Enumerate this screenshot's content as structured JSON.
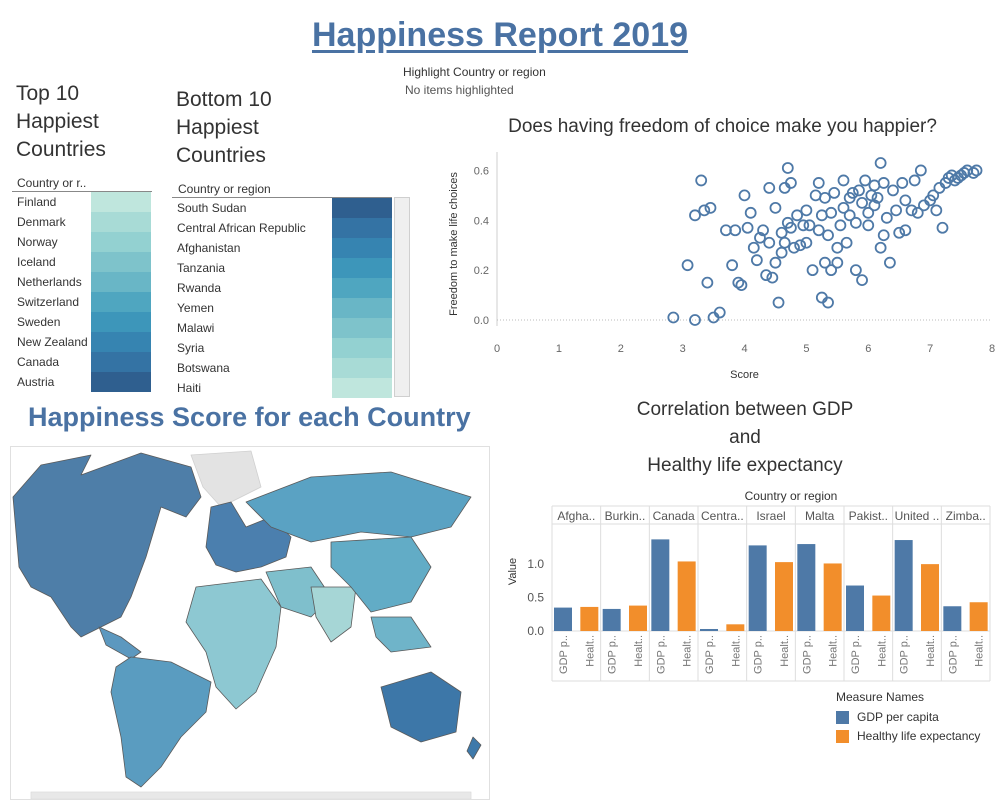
{
  "header": {
    "title": "Happiness Report 2019"
  },
  "highlight": {
    "label": "Highlight Country or region",
    "value": "No items highlighted"
  },
  "top10": {
    "title_lines": [
      "Top 10",
      "Happiest",
      "Countries"
    ],
    "column_header": "Country or r..",
    "countries": [
      "Finland",
      "Denmark",
      "Norway",
      "Iceland",
      "Netherlands",
      "Switzerland",
      "Sweden",
      "New Zealand",
      "Canada",
      "Austria"
    ],
    "colors": [
      "#bfe6dd",
      "#a8dbd6",
      "#93d1d1",
      "#7ec3cb",
      "#69b6c6",
      "#4fa6c0",
      "#3d96ba",
      "#3684b1",
      "#3473a4",
      "#2f5f8f"
    ]
  },
  "bottom10": {
    "title_lines": [
      "Bottom 10",
      "Happiest",
      "Countries"
    ],
    "column_header": "Country or region",
    "countries": [
      "South Sudan",
      "Central African Republic",
      "Afghanistan",
      "Tanzania",
      "Rwanda",
      "Yemen",
      "Malawi",
      "Syria",
      "Botswana",
      "Haiti"
    ],
    "colors": [
      "#2f5f8f",
      "#3473a4",
      "#3684b1",
      "#3d96ba",
      "#4fa6c0",
      "#69b6c6",
      "#7ec3cb",
      "#93d1d1",
      "#a8dbd6",
      "#bfe6dd"
    ]
  },
  "map": {
    "title": "Happiness Score for each Country"
  },
  "chart_data": [
    {
      "type": "scatter",
      "title": "Does having freedom of choice make you happier?",
      "xlabel": "Score",
      "ylabel": "Freedom to make life choices",
      "xlim": [
        0,
        8
      ],
      "ylim": [
        0,
        0.65
      ],
      "xticks": [
        "0",
        "1",
        "2",
        "3",
        "4",
        "5",
        "6",
        "7",
        "8"
      ],
      "yticks": [
        "0.0",
        "0.2",
        "0.4",
        "0.6"
      ],
      "color": "#4e79a7",
      "points": [
        [
          2.85,
          0.01
        ],
        [
          3.08,
          0.22
        ],
        [
          3.2,
          0.0
        ],
        [
          3.2,
          0.42
        ],
        [
          3.3,
          0.56
        ],
        [
          3.35,
          0.44
        ],
        [
          3.4,
          0.15
        ],
        [
          3.45,
          0.45
        ],
        [
          3.5,
          0.01
        ],
        [
          3.6,
          0.03
        ],
        [
          3.7,
          0.36
        ],
        [
          3.8,
          0.22
        ],
        [
          3.85,
          0.36
        ],
        [
          3.9,
          0.15
        ],
        [
          3.95,
          0.14
        ],
        [
          4.0,
          0.5
        ],
        [
          4.05,
          0.37
        ],
        [
          4.1,
          0.43
        ],
        [
          4.15,
          0.29
        ],
        [
          4.2,
          0.24
        ],
        [
          4.25,
          0.33
        ],
        [
          4.3,
          0.36
        ],
        [
          4.35,
          0.18
        ],
        [
          4.4,
          0.53
        ],
        [
          4.4,
          0.31
        ],
        [
          4.45,
          0.17
        ],
        [
          4.5,
          0.23
        ],
        [
          4.5,
          0.45
        ],
        [
          4.55,
          0.07
        ],
        [
          4.6,
          0.35
        ],
        [
          4.6,
          0.27
        ],
        [
          4.65,
          0.53
        ],
        [
          4.65,
          0.31
        ],
        [
          4.7,
          0.39
        ],
        [
          4.7,
          0.61
        ],
        [
          4.75,
          0.55
        ],
        [
          4.75,
          0.37
        ],
        [
          4.8,
          0.29
        ],
        [
          4.85,
          0.42
        ],
        [
          4.9,
          0.3
        ],
        [
          4.95,
          0.38
        ],
        [
          5.0,
          0.31
        ],
        [
          5.0,
          0.44
        ],
        [
          5.05,
          0.38
        ],
        [
          5.1,
          0.2
        ],
        [
          5.15,
          0.5
        ],
        [
          5.2,
          0.55
        ],
        [
          5.2,
          0.36
        ],
        [
          5.25,
          0.09
        ],
        [
          5.25,
          0.42
        ],
        [
          5.3,
          0.23
        ],
        [
          5.3,
          0.49
        ],
        [
          5.35,
          0.07
        ],
        [
          5.35,
          0.34
        ],
        [
          5.4,
          0.2
        ],
        [
          5.4,
          0.43
        ],
        [
          5.45,
          0.51
        ],
        [
          5.5,
          0.29
        ],
        [
          5.5,
          0.23
        ],
        [
          5.55,
          0.38
        ],
        [
          5.6,
          0.45
        ],
        [
          5.6,
          0.56
        ],
        [
          5.65,
          0.31
        ],
        [
          5.7,
          0.49
        ],
        [
          5.7,
          0.42
        ],
        [
          5.75,
          0.51
        ],
        [
          5.8,
          0.2
        ],
        [
          5.8,
          0.39
        ],
        [
          5.85,
          0.52
        ],
        [
          5.9,
          0.16
        ],
        [
          5.9,
          0.47
        ],
        [
          5.95,
          0.56
        ],
        [
          6.0,
          0.43
        ],
        [
          6.0,
          0.38
        ],
        [
          6.05,
          0.5
        ],
        [
          6.1,
          0.54
        ],
        [
          6.1,
          0.46
        ],
        [
          6.15,
          0.49
        ],
        [
          6.2,
          0.63
        ],
        [
          6.2,
          0.29
        ],
        [
          6.25,
          0.34
        ],
        [
          6.25,
          0.55
        ],
        [
          6.3,
          0.41
        ],
        [
          6.35,
          0.23
        ],
        [
          6.4,
          0.52
        ],
        [
          6.45,
          0.44
        ],
        [
          6.5,
          0.35
        ],
        [
          6.55,
          0.55
        ],
        [
          6.6,
          0.48
        ],
        [
          6.6,
          0.36
        ],
        [
          6.7,
          0.44
        ],
        [
          6.8,
          0.43
        ],
        [
          6.9,
          0.46
        ],
        [
          7.0,
          0.48
        ],
        [
          7.05,
          0.5
        ],
        [
          7.1,
          0.44
        ],
        [
          7.15,
          0.53
        ],
        [
          7.2,
          0.37
        ],
        [
          7.25,
          0.55
        ],
        [
          7.3,
          0.57
        ],
        [
          7.35,
          0.58
        ],
        [
          7.4,
          0.56
        ],
        [
          7.45,
          0.57
        ],
        [
          7.5,
          0.58
        ],
        [
          7.55,
          0.59
        ],
        [
          7.6,
          0.6
        ],
        [
          7.7,
          0.59
        ],
        [
          7.75,
          0.6
        ],
        [
          6.85,
          0.6
        ],
        [
          6.75,
          0.56
        ]
      ]
    },
    {
      "type": "bar",
      "title_lines": [
        "Correlation between GDP",
        "and",
        "Healthy life expectancy"
      ],
      "column_header": "Country or region",
      "categories": [
        "Afgha..",
        "Burkin..",
        "Canada",
        "Centra..",
        "Israel",
        "Malta",
        "Pakist..",
        "United ..",
        "Zimba.."
      ],
      "measure_labels": [
        "GDP p..",
        "Healt.."
      ],
      "ylabel": "Value",
      "ylim": [
        0,
        1.6
      ],
      "yticks": [
        "0.0",
        "0.5",
        "1.0"
      ],
      "series": [
        {
          "name": "GDP per capita",
          "color": "#4e79a7",
          "values": [
            0.35,
            0.33,
            1.37,
            0.03,
            1.28,
            1.3,
            0.68,
            1.36,
            0.37
          ]
        },
        {
          "name": "Healthy life expectancy",
          "color": "#f28e2b",
          "values": [
            0.36,
            0.38,
            1.04,
            0.1,
            1.03,
            1.01,
            0.53,
            1.0,
            0.43
          ]
        }
      ],
      "legend_title": "Measure Names",
      "legend_position": "bottom-right"
    }
  ]
}
